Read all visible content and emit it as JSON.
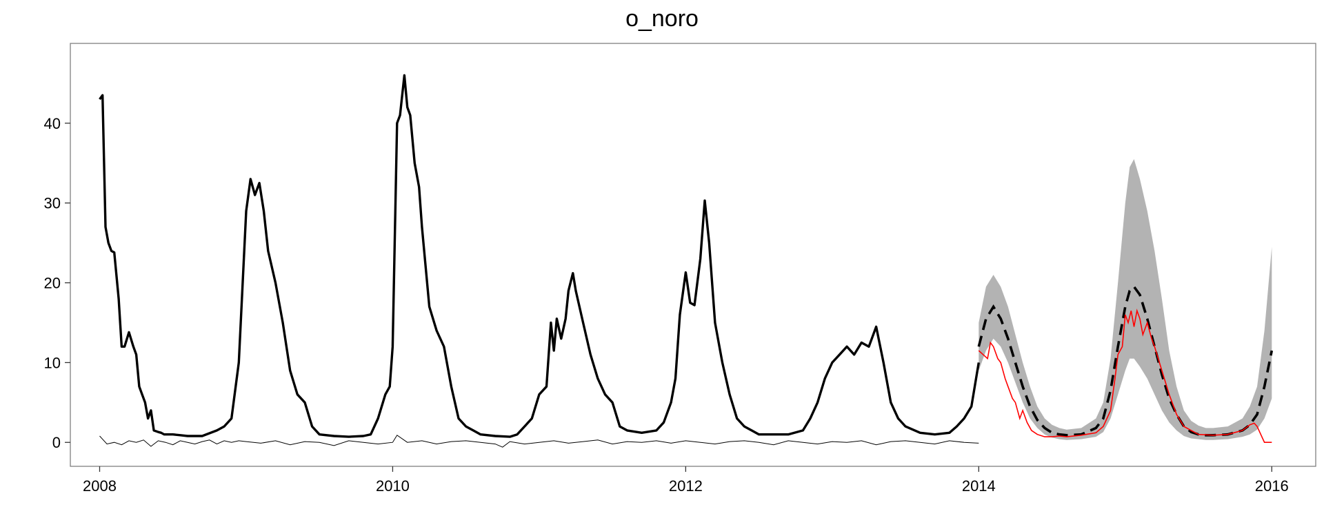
{
  "chart_data": {
    "type": "line",
    "title": "o_noro",
    "xlabel": "",
    "ylabel": "",
    "xlim": [
      2007.8,
      2016.3
    ],
    "ylim": [
      -3,
      50
    ],
    "x_ticks": [
      "2008",
      "2010",
      "2012",
      "2014",
      "2016"
    ],
    "x_tick_values": [
      2008,
      2010,
      2012,
      2014,
      2016
    ],
    "y_ticks": [
      "0",
      "10",
      "20",
      "30",
      "40"
    ],
    "y_tick_values": [
      0,
      10,
      20,
      30,
      40
    ],
    "grid": false,
    "colors": {
      "observed": "#000000",
      "residual": "#000000",
      "forecast": "#000000",
      "actual": "#ff0000",
      "band": "#b3b3b3"
    },
    "series": [
      {
        "style": "solid-thick",
        "x": [
          2008.0,
          2008.02,
          2008.04,
          2008.06,
          2008.08,
          2008.1,
          2008.13,
          2008.15,
          2008.17,
          2008.2,
          2008.23,
          2008.25,
          2008.27,
          2008.29,
          2008.31,
          2008.33,
          2008.35,
          2008.37,
          2008.4,
          2008.42,
          2008.44,
          2008.46,
          2008.48,
          2008.5,
          2008.55,
          2008.6,
          2008.7,
          2008.8,
          2008.85,
          2008.9,
          2008.95,
          2009.0,
          2009.03,
          2009.06,
          2009.09,
          2009.12,
          2009.15,
          2009.2,
          2009.25,
          2009.3,
          2009.35,
          2009.4,
          2009.45,
          2009.5,
          2009.6,
          2009.7,
          2009.8,
          2009.85,
          2009.9,
          2009.95,
          2009.98,
          2010.0,
          2010.03,
          2010.05,
          2010.08,
          2010.1,
          2010.12,
          2010.15,
          2010.18,
          2010.2,
          2010.25,
          2010.3,
          2010.35,
          2010.4,
          2010.45,
          2010.5,
          2010.55,
          2010.6,
          2010.7,
          2010.8,
          2010.85,
          2010.9,
          2010.95,
          2011.0,
          2011.05,
          2011.08,
          2011.1,
          2011.12,
          2011.15,
          2011.18,
          2011.2,
          2011.23,
          2011.25,
          2011.3,
          2011.35,
          2011.4,
          2011.45,
          2011.5,
          2011.55,
          2011.6,
          2011.7,
          2011.8,
          2011.85,
          2011.9,
          2011.93,
          2011.96,
          2012.0,
          2012.03,
          2012.06,
          2012.1,
          2012.13,
          2012.16,
          2012.2,
          2012.25,
          2012.3,
          2012.35,
          2012.4,
          2012.45,
          2012.5,
          2012.6,
          2012.7,
          2012.8,
          2012.85,
          2012.9,
          2012.95,
          2013.0,
          2013.05,
          2013.1,
          2013.15,
          2013.2,
          2013.25,
          2013.3,
          2013.35,
          2013.4,
          2013.45,
          2013.5,
          2013.6,
          2013.7,
          2013.8,
          2013.85,
          2013.9,
          2013.95,
          2014.0
        ],
        "y": [
          43.0,
          43.5,
          27.0,
          25.0,
          24.0,
          23.8,
          18.0,
          12.0,
          12.0,
          13.8,
          12.0,
          11.0,
          7.0,
          6.0,
          5.0,
          3.0,
          4.0,
          1.5,
          1.3,
          1.2,
          1.0,
          1.0,
          1.0,
          1.0,
          0.9,
          0.8,
          0.8,
          1.5,
          2.0,
          3.0,
          10.0,
          29.0,
          33.0,
          31.0,
          32.5,
          29.0,
          24.0,
          20.0,
          15.0,
          9.0,
          6.0,
          5.0,
          2.0,
          1.0,
          0.8,
          0.7,
          0.8,
          1.0,
          3.0,
          6.0,
          7.0,
          12.0,
          40.0,
          41.0,
          46.0,
          42.0,
          41.0,
          35.0,
          32.0,
          27.0,
          17.0,
          14.0,
          12.0,
          7.0,
          3.0,
          2.0,
          1.5,
          1.0,
          0.8,
          0.7,
          1.0,
          2.0,
          3.0,
          6.0,
          7.0,
          15.0,
          11.5,
          15.5,
          13.0,
          15.5,
          19.0,
          21.2,
          19.0,
          15.0,
          11.0,
          8.0,
          6.0,
          5.0,
          2.0,
          1.5,
          1.2,
          1.5,
          2.5,
          5.0,
          8.0,
          16.0,
          21.3,
          17.5,
          17.2,
          23.0,
          30.3,
          25.0,
          15.0,
          10.0,
          6.0,
          3.0,
          2.0,
          1.5,
          1.0,
          1.0,
          1.0,
          1.5,
          3.0,
          5.0,
          8.0,
          10.0,
          11.0,
          12.0,
          11.0,
          12.5,
          12.0,
          14.5,
          10.0,
          5.0,
          3.0,
          2.0,
          1.2,
          1.0,
          1.2,
          2.0,
          3.0,
          4.5,
          10.0
        ]
      },
      {
        "style": "solid-thin",
        "x": [
          2008.0,
          2008.05,
          2008.1,
          2008.15,
          2008.2,
          2008.25,
          2008.3,
          2008.35,
          2008.4,
          2008.45,
          2008.5,
          2008.55,
          2008.6,
          2008.65,
          2008.7,
          2008.75,
          2008.8,
          2008.85,
          2008.9,
          2008.95,
          2009.0,
          2009.1,
          2009.2,
          2009.3,
          2009.4,
          2009.5,
          2009.6,
          2009.7,
          2009.8,
          2009.9,
          2010.0,
          2010.03,
          2010.1,
          2010.2,
          2010.3,
          2010.4,
          2010.5,
          2010.6,
          2010.7,
          2010.75,
          2010.8,
          2010.9,
          2011.0,
          2011.1,
          2011.2,
          2011.3,
          2011.4,
          2011.5,
          2011.6,
          2011.7,
          2011.8,
          2011.9,
          2012.0,
          2012.1,
          2012.2,
          2012.3,
          2012.4,
          2012.5,
          2012.6,
          2012.7,
          2012.8,
          2012.9,
          2013.0,
          2013.1,
          2013.2,
          2013.3,
          2013.4,
          2013.5,
          2013.6,
          2013.7,
          2013.8,
          2013.9,
          2014.0
        ],
        "y": [
          0.8,
          -0.2,
          0.0,
          -0.3,
          0.2,
          0.0,
          0.3,
          -0.5,
          0.2,
          0.0,
          -0.3,
          0.2,
          0.0,
          -0.2,
          0.1,
          0.3,
          -0.2,
          0.2,
          0.0,
          0.2,
          0.1,
          -0.1,
          0.2,
          -0.3,
          0.1,
          0.0,
          -0.4,
          0.2,
          0.0,
          -0.2,
          0.0,
          0.9,
          0.0,
          0.2,
          -0.2,
          0.1,
          0.2,
          0.0,
          -0.2,
          -0.6,
          0.1,
          -0.2,
          0.0,
          0.2,
          -0.1,
          0.1,
          0.3,
          -0.2,
          0.1,
          0.0,
          0.2,
          -0.1,
          0.2,
          0.0,
          -0.2,
          0.1,
          0.2,
          0.0,
          -0.3,
          0.2,
          0.0,
          -0.2,
          0.1,
          0.0,
          0.2,
          -0.3,
          0.1,
          0.2,
          0.0,
          -0.2,
          0.2,
          0.0,
          -0.1
        ]
      },
      {
        "style": "dashed-thick",
        "x": [
          2014.0,
          2014.05,
          2014.1,
          2014.15,
          2014.2,
          2014.25,
          2014.3,
          2014.35,
          2014.4,
          2014.45,
          2014.5,
          2014.55,
          2014.6,
          2014.7,
          2014.8,
          2014.85,
          2014.9,
          2014.95,
          2015.0,
          2015.03,
          2015.06,
          2015.1,
          2015.15,
          2015.2,
          2015.25,
          2015.3,
          2015.35,
          2015.4,
          2015.45,
          2015.5,
          2015.55,
          2015.6,
          2015.7,
          2015.8,
          2015.85,
          2015.9,
          2015.95,
          2016.0
        ],
        "y": [
          12.0,
          15.5,
          17.0,
          15.5,
          13.0,
          10.0,
          7.0,
          4.5,
          2.8,
          1.8,
          1.2,
          1.0,
          0.9,
          1.0,
          1.8,
          3.0,
          6.5,
          12.0,
          17.0,
          19.0,
          19.5,
          18.5,
          15.5,
          12.0,
          8.5,
          5.5,
          3.5,
          2.0,
          1.3,
          1.0,
          0.9,
          0.9,
          1.0,
          1.5,
          2.2,
          3.5,
          7.0,
          11.5
        ]
      },
      {
        "style": "solid-red",
        "x": [
          2014.0,
          2014.03,
          2014.06,
          2014.08,
          2014.1,
          2014.13,
          2014.15,
          2014.18,
          2014.2,
          2014.23,
          2014.25,
          2014.28,
          2014.3,
          2014.33,
          2014.36,
          2014.4,
          2014.45,
          2014.5,
          2014.55,
          2014.6,
          2014.7,
          2014.8,
          2014.85,
          2014.9,
          2014.93,
          2014.95,
          2014.98,
          2015.0,
          2015.02,
          2015.04,
          2015.06,
          2015.08,
          2015.1,
          2015.12,
          2015.15,
          2015.18,
          2015.2,
          2015.25,
          2015.3,
          2015.35,
          2015.4,
          2015.45,
          2015.5,
          2015.6,
          2015.7,
          2015.8,
          2015.85,
          2015.88,
          2015.9,
          2015.95,
          2016.0
        ],
        "y": [
          11.5,
          11.0,
          10.5,
          12.5,
          12.0,
          10.5,
          10.0,
          8.0,
          7.0,
          5.5,
          5.0,
          3.0,
          4.0,
          2.5,
          1.5,
          1.0,
          0.7,
          0.7,
          0.8,
          0.7,
          0.9,
          1.2,
          2.0,
          4.0,
          8.0,
          11.0,
          12.0,
          16.0,
          15.0,
          16.5,
          14.5,
          16.5,
          15.5,
          13.5,
          15.0,
          13.0,
          12.0,
          9.0,
          6.0,
          3.5,
          2.0,
          1.5,
          1.0,
          0.9,
          1.0,
          1.5,
          2.2,
          2.4,
          2.0,
          0.0,
          0.0
        ]
      }
    ],
    "band": {
      "x": [
        2014.0,
        2014.05,
        2014.1,
        2014.15,
        2014.2,
        2014.25,
        2014.3,
        2014.35,
        2014.4,
        2014.45,
        2014.5,
        2014.55,
        2014.6,
        2014.7,
        2014.8,
        2014.85,
        2014.9,
        2014.95,
        2015.0,
        2015.03,
        2015.06,
        2015.1,
        2015.15,
        2015.2,
        2015.25,
        2015.3,
        2015.35,
        2015.4,
        2015.45,
        2015.5,
        2015.55,
        2015.6,
        2015.7,
        2015.8,
        2015.85,
        2015.9,
        2015.95,
        2016.0
      ],
      "upper": [
        15.0,
        19.5,
        21.0,
        19.5,
        17.0,
        13.5,
        10.0,
        7.0,
        4.5,
        3.0,
        2.2,
        1.8,
        1.6,
        1.8,
        3.0,
        5.0,
        10.5,
        20.0,
        30.0,
        34.5,
        35.5,
        33.0,
        29.0,
        24.0,
        18.0,
        11.5,
        7.0,
        4.0,
        2.7,
        2.1,
        1.8,
        1.8,
        2.0,
        3.0,
        4.5,
        7.0,
        14.0,
        24.5
      ],
      "lower": [
        9.0,
        11.5,
        13.0,
        12.0,
        10.0,
        7.5,
        5.0,
        3.0,
        1.8,
        1.0,
        0.6,
        0.4,
        0.3,
        0.4,
        0.7,
        1.3,
        3.0,
        6.0,
        9.0,
        10.5,
        10.5,
        9.5,
        8.0,
        6.0,
        4.0,
        2.5,
        1.5,
        0.8,
        0.5,
        0.4,
        0.3,
        0.3,
        0.4,
        0.7,
        1.0,
        1.6,
        3.0,
        5.5
      ]
    }
  }
}
